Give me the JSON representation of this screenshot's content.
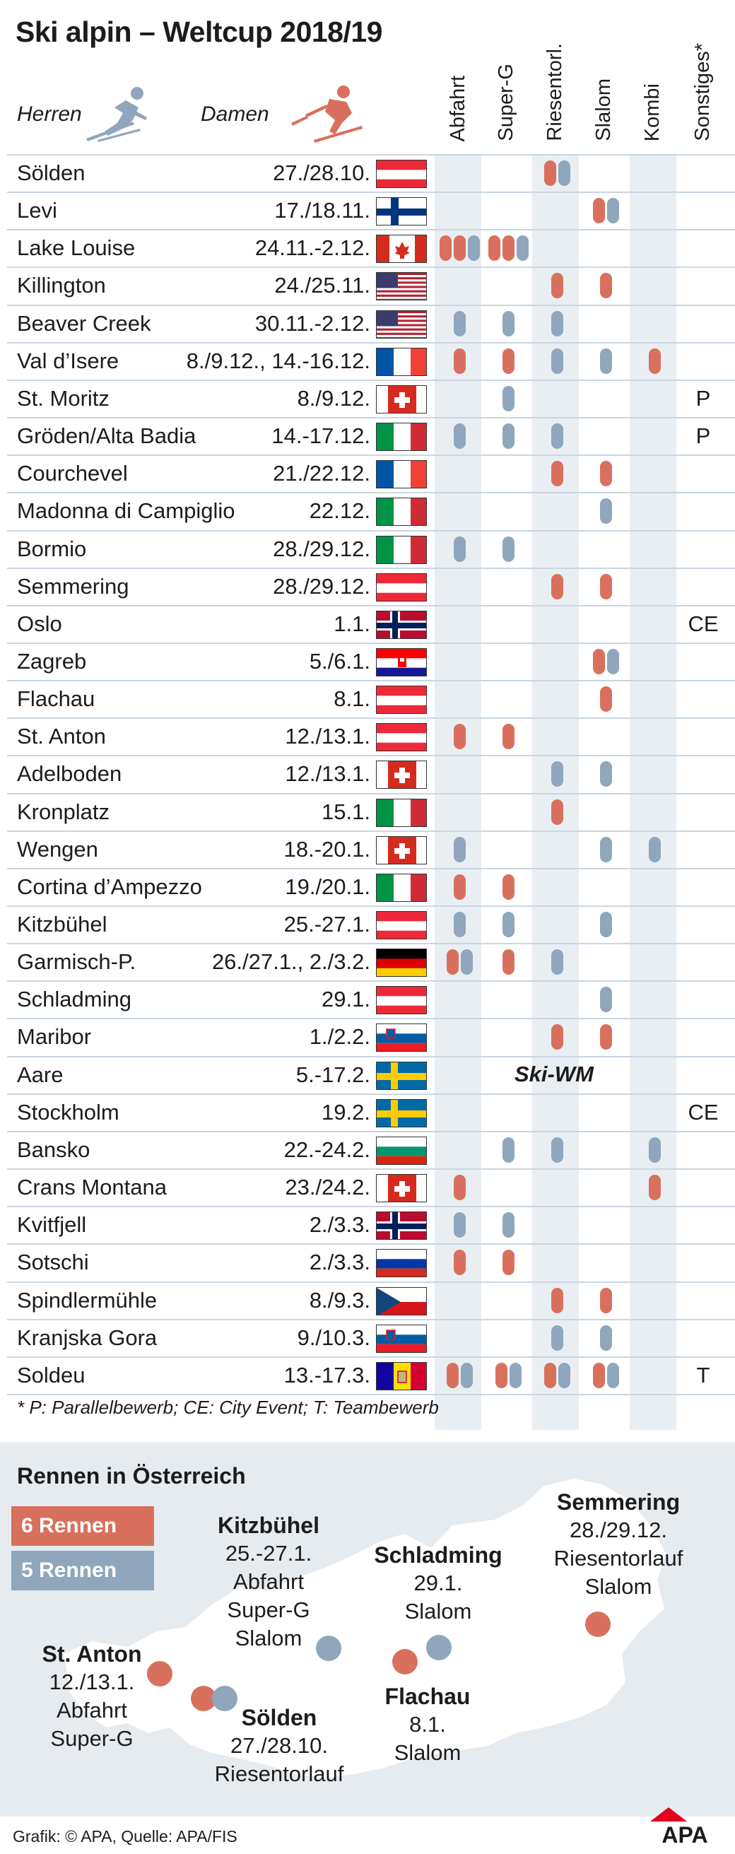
{
  "title": "Ski alpin – Weltcup 2018/19",
  "legend": {
    "herren": "Herren",
    "damen": "Damen"
  },
  "columns": [
    "Abfahrt",
    "Super-G",
    "Riesentorl.",
    "Slalom",
    "Kombi",
    "Sonstiges*"
  ],
  "colors": {
    "damen": "#d9705d",
    "herren": "#8fa6bc",
    "band": "#e9eef3"
  },
  "rows": [
    {
      "name": "Sölden",
      "date": "27./28.10.",
      "flag": "at",
      "ab": "",
      "sg": "",
      "rt": "rb",
      "sl": "",
      "ko": "",
      "other": ""
    },
    {
      "name": "Levi",
      "date": "17./18.11.",
      "flag": "fi",
      "ab": "",
      "sg": "",
      "rt": "",
      "sl": "rb",
      "ko": "",
      "other": ""
    },
    {
      "name": "Lake Louise",
      "date": "24.11.-2.12.",
      "flag": "ca",
      "ab": "rrb",
      "sg": "rrb",
      "rt": "",
      "sl": "",
      "ko": "",
      "other": ""
    },
    {
      "name": "Killington",
      "date": "24./25.11.",
      "flag": "us",
      "ab": "",
      "sg": "",
      "rt": "r",
      "sl": "r",
      "ko": "",
      "other": ""
    },
    {
      "name": "Beaver Creek",
      "date": "30.11.-2.12.",
      "flag": "us",
      "ab": "b",
      "sg": "b",
      "rt": "b",
      "sl": "",
      "ko": "",
      "other": ""
    },
    {
      "name": "Val d’Isere",
      "date": "8./9.12., 14.-16.12.",
      "flag": "fr",
      "ab": "r",
      "sg": "r",
      "rt": "b",
      "sl": "b",
      "ko": "r",
      "other": ""
    },
    {
      "name": "St. Moritz",
      "date": "8./9.12.",
      "flag": "ch",
      "ab": "",
      "sg": "b",
      "rt": "",
      "sl": "",
      "ko": "",
      "other": "P"
    },
    {
      "name": "Gröden/Alta Badia",
      "date": "14.-17.12.",
      "flag": "it",
      "ab": "b",
      "sg": "b",
      "rt": "b",
      "sl": "",
      "ko": "",
      "other": "P"
    },
    {
      "name": "Courchevel",
      "date": "21./22.12.",
      "flag": "fr",
      "ab": "",
      "sg": "",
      "rt": "r",
      "sl": "r",
      "ko": "",
      "other": ""
    },
    {
      "name": "Madonna di Campiglio",
      "date": "22.12.",
      "flag": "it",
      "ab": "",
      "sg": "",
      "rt": "",
      "sl": "b",
      "ko": "",
      "other": ""
    },
    {
      "name": "Bormio",
      "date": "28./29.12.",
      "flag": "it",
      "ab": "b",
      "sg": "b",
      "rt": "",
      "sl": "",
      "ko": "",
      "other": ""
    },
    {
      "name": "Semmering",
      "date": "28./29.12.",
      "flag": "at",
      "ab": "",
      "sg": "",
      "rt": "r",
      "sl": "r",
      "ko": "",
      "other": ""
    },
    {
      "name": "Oslo",
      "date": "1.1.",
      "flag": "no",
      "ab": "",
      "sg": "",
      "rt": "",
      "sl": "",
      "ko": "",
      "other": "CE"
    },
    {
      "name": "Zagreb",
      "date": "5./6.1.",
      "flag": "hr",
      "ab": "",
      "sg": "",
      "rt": "",
      "sl": "rb",
      "ko": "",
      "other": ""
    },
    {
      "name": "Flachau",
      "date": "8.1.",
      "flag": "at",
      "ab": "",
      "sg": "",
      "rt": "",
      "sl": "r",
      "ko": "",
      "other": ""
    },
    {
      "name": "St. Anton",
      "date": "12./13.1.",
      "flag": "at",
      "ab": "r",
      "sg": "r",
      "rt": "",
      "sl": "",
      "ko": "",
      "other": ""
    },
    {
      "name": "Adelboden",
      "date": "12./13.1.",
      "flag": "ch",
      "ab": "",
      "sg": "",
      "rt": "b",
      "sl": "b",
      "ko": "",
      "other": ""
    },
    {
      "name": "Kronplatz",
      "date": "15.1.",
      "flag": "it",
      "ab": "",
      "sg": "",
      "rt": "r",
      "sl": "",
      "ko": "",
      "other": ""
    },
    {
      "name": "Wengen",
      "date": "18.-20.1.",
      "flag": "ch",
      "ab": "b",
      "sg": "",
      "rt": "",
      "sl": "b",
      "ko": "b",
      "other": ""
    },
    {
      "name": "Cortina d’Ampezzo",
      "date": "19./20.1.",
      "flag": "it",
      "ab": "r",
      "sg": "r",
      "rt": "",
      "sl": "",
      "ko": "",
      "other": ""
    },
    {
      "name": "Kitzbühel",
      "date": "25.-27.1.",
      "flag": "at",
      "ab": "b",
      "sg": "b",
      "rt": "",
      "sl": "b",
      "ko": "",
      "other": ""
    },
    {
      "name": "Garmisch-P.",
      "date": "26./27.1., 2./3.2.",
      "flag": "de",
      "ab": "rb",
      "sg": "r",
      "rt": "b",
      "sl": "",
      "ko": "",
      "other": ""
    },
    {
      "name": "Schladming",
      "date": "29.1.",
      "flag": "at",
      "ab": "",
      "sg": "",
      "rt": "",
      "sl": "b",
      "ko": "",
      "other": ""
    },
    {
      "name": "Maribor",
      "date": "1./2.2.",
      "flag": "si",
      "ab": "",
      "sg": "",
      "rt": "r",
      "sl": "r",
      "ko": "",
      "other": ""
    },
    {
      "name": "Aare",
      "date": "5.-17.2.",
      "flag": "se",
      "ab": "",
      "sg": "",
      "rt": "",
      "sl": "",
      "ko": "",
      "other": "",
      "special": "Ski-WM"
    },
    {
      "name": "Stockholm",
      "date": "19.2.",
      "flag": "se",
      "ab": "",
      "sg": "",
      "rt": "",
      "sl": "",
      "ko": "",
      "other": "CE"
    },
    {
      "name": "Bansko",
      "date": "22.-24.2.",
      "flag": "bg",
      "ab": "",
      "sg": "b",
      "rt": "b",
      "sl": "",
      "ko": "b",
      "other": ""
    },
    {
      "name": "Crans Montana",
      "date": "23./24.2.",
      "flag": "ch",
      "ab": "r",
      "sg": "",
      "rt": "",
      "sl": "",
      "ko": "r",
      "other": ""
    },
    {
      "name": "Kvitfjell",
      "date": "2./3.3.",
      "flag": "no",
      "ab": "b",
      "sg": "b",
      "rt": "",
      "sl": "",
      "ko": "",
      "other": ""
    },
    {
      "name": "Sotschi",
      "date": "2./3.3.",
      "flag": "ru",
      "ab": "r",
      "sg": "r",
      "rt": "",
      "sl": "",
      "ko": "",
      "other": ""
    },
    {
      "name": "Spindlermühle",
      "date": "8./9.3.",
      "flag": "cz",
      "ab": "",
      "sg": "",
      "rt": "r",
      "sl": "r",
      "ko": "",
      "other": ""
    },
    {
      "name": "Kranjska Gora",
      "date": "9./10.3.",
      "flag": "si",
      "ab": "",
      "sg": "",
      "rt": "b",
      "sl": "b",
      "ko": "",
      "other": ""
    },
    {
      "name": "Soldeu",
      "date": "13.-17.3.",
      "flag": "ad",
      "ab": "rb",
      "sg": "rb",
      "rt": "rb",
      "sl": "rb",
      "ko": "",
      "other": "T"
    }
  ],
  "footnote": "* P: Parallelbewerb; CE: City Event; T: Teambewerb",
  "austria": {
    "title": "Rennen in Österreich",
    "legend_damen": "6 Rennen",
    "legend_herren": "5 Rennen",
    "cities": {
      "kitzbuehel": {
        "name": "Kitzbühel",
        "lines": [
          "25.-27.1.",
          "Abfahrt",
          "Super-G",
          "Slalom"
        ]
      },
      "schladming": {
        "name": "Schladming",
        "lines": [
          "29.1.",
          "Slalom"
        ]
      },
      "semmering": {
        "name": "Semmering",
        "lines": [
          "28./29.12.",
          "Riesentorlauf",
          "Slalom"
        ]
      },
      "stanton": {
        "name": "St. Anton",
        "lines": [
          "12./13.1.",
          "Abfahrt",
          "Super-G"
        ]
      },
      "soelden": {
        "name": "Sölden",
        "lines": [
          "27./28.10.",
          "Riesentorlauf"
        ]
      },
      "flachau": {
        "name": "Flachau",
        "lines": [
          "8.1.",
          "Slalom"
        ]
      }
    }
  },
  "credit": "Grafik: © APA, Quelle: APA/FIS",
  "logo": "APA"
}
